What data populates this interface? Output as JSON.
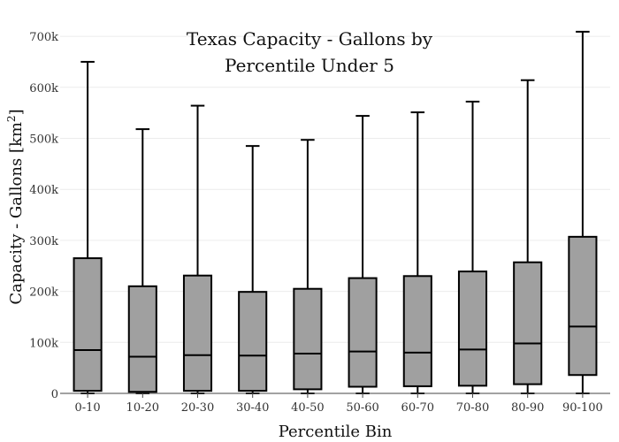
{
  "chart_data": {
    "type": "box",
    "title_lines": [
      "Texas Capacity - Gallons by",
      "Percentile Under 5"
    ],
    "xlabel": "Percentile Bin",
    "ylabel_main": "Capacity - Gallons  [km",
    "ylabel_sup": "2",
    "ylabel_end": "]",
    "ylim": [
      0,
      740000
    ],
    "yticks": [
      0,
      100000,
      200000,
      300000,
      400000,
      500000,
      600000,
      700000
    ],
    "ytick_labels": [
      "0",
      "100k",
      "200k",
      "300k",
      "400k",
      "500k",
      "600k",
      "700k"
    ],
    "grid": true,
    "categories": [
      "0-10",
      "10-20",
      "20-30",
      "30-40",
      "40-50",
      "50-60",
      "60-70",
      "70-80",
      "80-90",
      "90-100"
    ],
    "boxes": [
      {
        "min": 0,
        "q1": 5000,
        "median": 85000,
        "q3": 265000,
        "max": 650000
      },
      {
        "min": 0,
        "q1": 3000,
        "median": 72000,
        "q3": 210000,
        "max": 518000
      },
      {
        "min": 0,
        "q1": 5000,
        "median": 75000,
        "q3": 231000,
        "max": 564000
      },
      {
        "min": 0,
        "q1": 5000,
        "median": 74000,
        "q3": 199000,
        "max": 485000
      },
      {
        "min": 0,
        "q1": 8000,
        "median": 78000,
        "q3": 205000,
        "max": 497000
      },
      {
        "min": 0,
        "q1": 13000,
        "median": 82000,
        "q3": 226000,
        "max": 544000
      },
      {
        "min": 0,
        "q1": 14000,
        "median": 80000,
        "q3": 230000,
        "max": 551000
      },
      {
        "min": 0,
        "q1": 15000,
        "median": 86000,
        "q3": 239000,
        "max": 572000
      },
      {
        "min": 0,
        "q1": 18000,
        "median": 98000,
        "q3": 257000,
        "max": 614000
      },
      {
        "min": 0,
        "q1": 36000,
        "median": 131000,
        "q3": 307000,
        "max": 709000
      }
    ],
    "colors": {
      "box_fill": "#a0a0a0",
      "stroke": "#000000",
      "grid": "#ececec",
      "axis": "#444444"
    }
  }
}
